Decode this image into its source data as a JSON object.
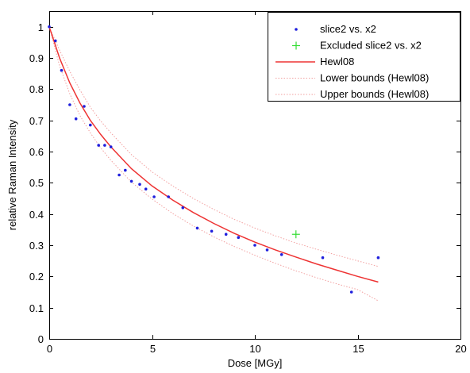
{
  "chart_data": {
    "type": "scatter",
    "title": "",
    "xlabel": "Dose [MGy]",
    "ylabel": "relative Raman Intensity",
    "xlim": [
      0,
      20
    ],
    "ylim": [
      0,
      1.05
    ],
    "xticks": [
      "0",
      "5",
      "10",
      "15",
      "20"
    ],
    "yticks": [
      "0",
      "0.1",
      "0.2",
      "0.3",
      "0.4",
      "0.5",
      "0.6",
      "0.7",
      "0.8",
      "0.9",
      "1"
    ],
    "xtick_values": [
      0,
      5,
      10,
      15,
      20
    ],
    "ytick_values": [
      0,
      0.1,
      0.2,
      0.3,
      0.4,
      0.5,
      0.6,
      0.7,
      0.8,
      0.9,
      1
    ],
    "grid": false,
    "legend_position": "top-right",
    "colors": {
      "points": "#1f1fdd",
      "excluded": "#33dd33",
      "fit": "#ee3333",
      "bounds": "#f2a0a0"
    },
    "series": [
      {
        "name": "slice2 vs. x2",
        "style": "points",
        "x": [
          0.0,
          0.3,
          0.6,
          1.0,
          1.3,
          1.7,
          2.0,
          2.4,
          2.7,
          3.0,
          3.4,
          3.7,
          4.0,
          4.4,
          4.7,
          5.1,
          5.8,
          6.5,
          7.2,
          7.9,
          8.6,
          9.2,
          10.0,
          10.6,
          11.3,
          13.3,
          14.7,
          16.0
        ],
        "y": [
          1.0,
          0.955,
          0.86,
          0.75,
          0.705,
          0.745,
          0.685,
          0.62,
          0.62,
          0.615,
          0.525,
          0.54,
          0.505,
          0.495,
          0.48,
          0.455,
          0.455,
          0.42,
          0.355,
          0.345,
          0.335,
          0.325,
          0.3,
          0.285,
          0.27,
          0.26,
          0.15,
          0.26
        ]
      },
      {
        "name": "Excluded slice2 vs. x2",
        "style": "plus",
        "x": [
          12.0
        ],
        "y": [
          0.335
        ]
      },
      {
        "name": "Hewl08",
        "style": "line",
        "x": [
          0,
          0.5,
          1,
          1.5,
          2,
          2.5,
          3,
          4,
          5,
          6,
          7,
          8,
          9,
          10,
          11,
          12,
          13,
          14,
          15,
          16
        ],
        "y": [
          1.0,
          0.9,
          0.82,
          0.755,
          0.7,
          0.655,
          0.615,
          0.545,
          0.49,
          0.445,
          0.405,
          0.37,
          0.338,
          0.31,
          0.285,
          0.262,
          0.24,
          0.22,
          0.2,
          0.182
        ]
      },
      {
        "name": "Lower bounds (Hewl08)",
        "style": "dotted",
        "x": [
          0,
          0.5,
          1,
          1.5,
          2,
          2.5,
          3,
          4,
          5,
          6,
          7,
          8,
          9,
          10,
          11,
          12,
          13,
          14,
          15,
          16
        ],
        "y": [
          1.0,
          0.875,
          0.785,
          0.715,
          0.66,
          0.612,
          0.572,
          0.502,
          0.448,
          0.402,
          0.362,
          0.327,
          0.296,
          0.268,
          0.242,
          0.218,
          0.196,
          0.176,
          0.158,
          0.122
        ]
      },
      {
        "name": "Upper bounds (Hewl08)",
        "style": "dotted",
        "x": [
          0,
          0.5,
          1,
          1.5,
          2,
          2.5,
          3,
          4,
          5,
          6,
          7,
          8,
          9,
          10,
          11,
          12,
          13,
          14,
          15,
          16
        ],
        "y": [
          1.0,
          0.925,
          0.857,
          0.797,
          0.742,
          0.698,
          0.66,
          0.59,
          0.535,
          0.49,
          0.45,
          0.415,
          0.383,
          0.355,
          0.33,
          0.307,
          0.287,
          0.268,
          0.25,
          0.232
        ]
      }
    ]
  }
}
